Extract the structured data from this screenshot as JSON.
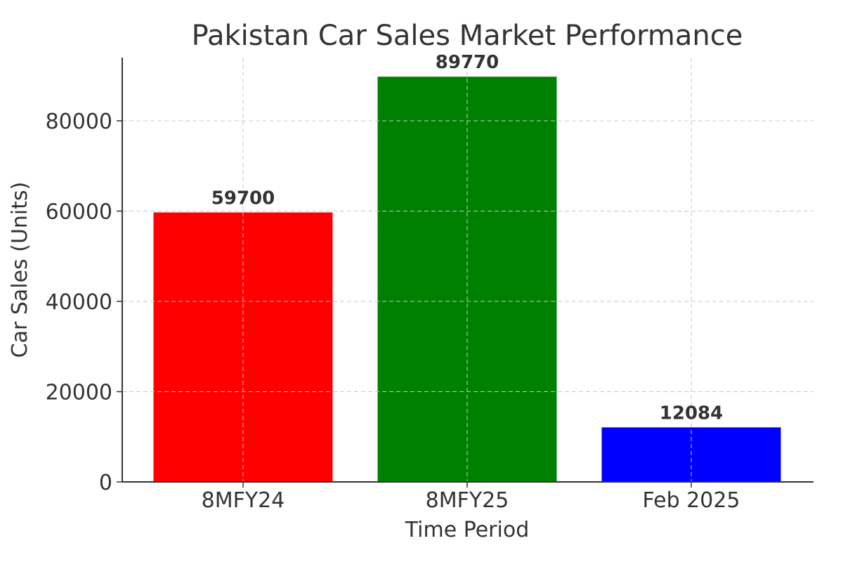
{
  "chart_data": {
    "type": "bar",
    "title": "Pakistan Car Sales Market Performance",
    "xlabel": "Time Period",
    "ylabel": "Car Sales (Units)",
    "categories": [
      "8MFY24",
      "8MFY25",
      "Feb 2025"
    ],
    "values": [
      59700,
      89770,
      12084
    ],
    "data_labels": [
      "59700",
      "89770",
      "12084"
    ],
    "colors": [
      "#ff0000",
      "#008000",
      "#0000ff"
    ],
    "ylim": [
      0,
      94000
    ],
    "yticks": [
      0,
      20000,
      40000,
      60000,
      80000
    ],
    "ytick_labels": [
      "0",
      "20000",
      "40000",
      "60000",
      "80000"
    ],
    "grid": true
  }
}
